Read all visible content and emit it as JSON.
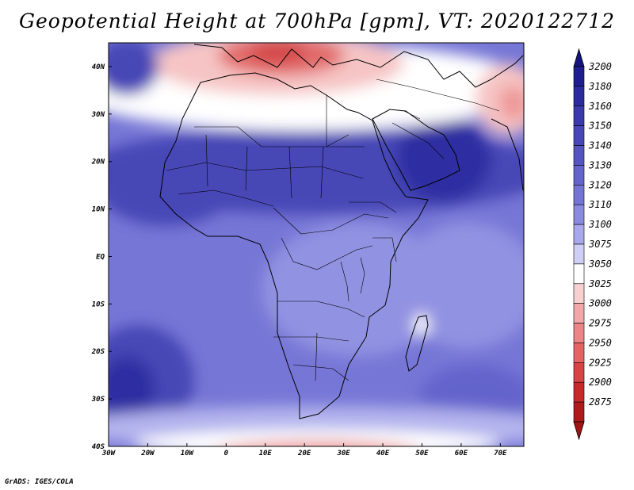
{
  "title": "Geopotential Height at 700hPa [gpm], VT: 2020122712",
  "credit": "GrADS: IGES/COLA",
  "map": {
    "lon_range": [
      -30,
      76
    ],
    "lat_range": [
      -40,
      45
    ],
    "lon_ticks": [
      {
        "value": -30,
        "label": "30W"
      },
      {
        "value": -20,
        "label": "20W"
      },
      {
        "value": -10,
        "label": "10W"
      },
      {
        "value": 0,
        "label": "0"
      },
      {
        "value": 10,
        "label": "10E"
      },
      {
        "value": 20,
        "label": "20E"
      },
      {
        "value": 30,
        "label": "30E"
      },
      {
        "value": 40,
        "label": "40E"
      },
      {
        "value": 50,
        "label": "50E"
      },
      {
        "value": 60,
        "label": "60E"
      },
      {
        "value": 70,
        "label": "70E"
      }
    ],
    "lat_ticks": [
      {
        "value": 40,
        "label": "40N"
      },
      {
        "value": 30,
        "label": "30N"
      },
      {
        "value": 20,
        "label": "20N"
      },
      {
        "value": 10,
        "label": "10N"
      },
      {
        "value": 0,
        "label": "EQ"
      },
      {
        "value": -10,
        "label": "10S"
      },
      {
        "value": -20,
        "label": "20S"
      },
      {
        "value": -30,
        "label": "30S"
      },
      {
        "value": -40,
        "label": "40S"
      }
    ]
  },
  "colorbar": {
    "levels": [
      {
        "label": "3200",
        "color": "#1e1e90"
      },
      {
        "label": "3180",
        "color": "#2b2b9e"
      },
      {
        "label": "3160",
        "color": "#3a3aac"
      },
      {
        "label": "3150",
        "color": "#4747b8"
      },
      {
        "label": "3140",
        "color": "#5555c2"
      },
      {
        "label": "3130",
        "color": "#6464cc"
      },
      {
        "label": "3120",
        "color": "#7474d6"
      },
      {
        "label": "3110",
        "color": "#8a8ae0"
      },
      {
        "label": "3100",
        "color": "#a8a8ec"
      },
      {
        "label": "3075",
        "color": "#cfcff6"
      },
      {
        "label": "3050",
        "color": "#ffffff"
      },
      {
        "label": "3025",
        "color": "#f8d0d0"
      },
      {
        "label": "3000",
        "color": "#f2a8a8"
      },
      {
        "label": "2975",
        "color": "#ec8686"
      },
      {
        "label": "2950",
        "color": "#e46464"
      },
      {
        "label": "2925",
        "color": "#d84444"
      },
      {
        "label": "2900",
        "color": "#c82a2a"
      },
      {
        "label": "2875",
        "color": "#b01a1a"
      }
    ],
    "top_color": "#14147c",
    "bottom_color": "#a01414"
  },
  "field_colors": {
    "deep": "#2e2ea2",
    "dark": "#4646b6",
    "mid": "#6464cc",
    "med": "#7676d6",
    "light": "#9292e2",
    "pale": "#b4b4ee",
    "faint": "#d8d8f6",
    "white": "#ffffff",
    "pink": "#f6c4c4",
    "red1": "#ee9898",
    "red2": "#e26a6a",
    "red3": "#d44a4a"
  }
}
